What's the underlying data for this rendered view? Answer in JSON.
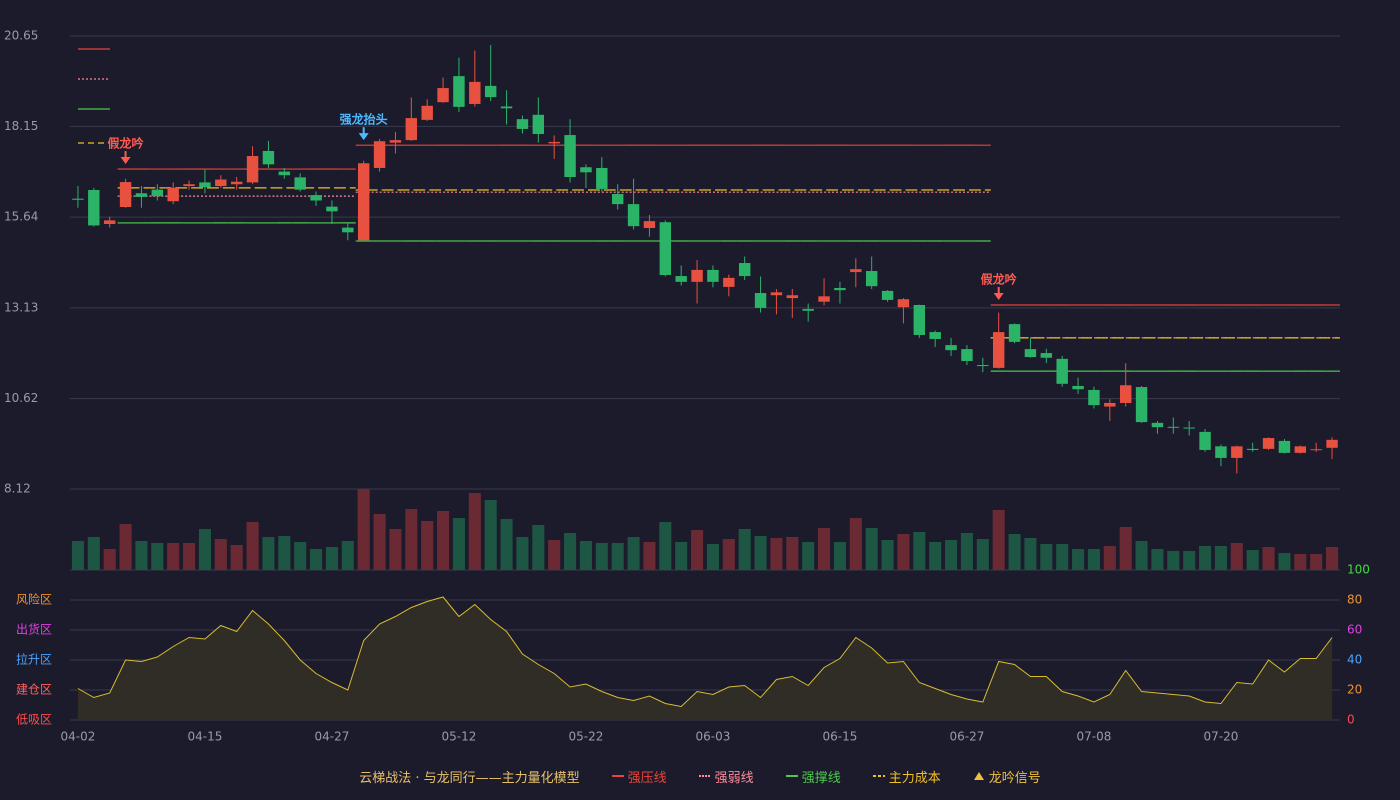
{
  "legend_title": "云梯战法 · 与龙同行——主力量化模型",
  "chart_data": [
    {
      "type": "candlestick",
      "categories": [
        "04-02",
        null,
        null,
        null,
        null,
        null,
        null,
        null,
        "04-15",
        null,
        null,
        null,
        null,
        null,
        null,
        null,
        "04-27",
        null,
        null,
        null,
        null,
        null,
        null,
        null,
        "05-12",
        null,
        null,
        null,
        null,
        null,
        null,
        null,
        "05-22",
        null,
        null,
        null,
        null,
        null,
        null,
        null,
        "06-03",
        null,
        null,
        null,
        null,
        null,
        null,
        null,
        "06-15",
        null,
        null,
        null,
        null,
        null,
        null,
        null,
        "06-27",
        null,
        null,
        null,
        null,
        null,
        null,
        null,
        "07-08",
        null,
        null,
        null,
        null,
        null,
        null,
        null,
        "07-20",
        null,
        null,
        null,
        null,
        null,
        null,
        null
      ],
      "open": [
        16.15,
        16.39,
        15.45,
        15.92,
        16.3,
        16.4,
        16.08,
        16.5,
        16.6,
        16.5,
        16.55,
        16.6,
        17.47,
        16.9,
        16.74,
        16.25,
        15.93,
        15.35,
        15.0,
        17.0,
        17.7,
        17.77,
        18.33,
        18.82,
        19.54,
        18.77,
        19.27,
        18.7,
        18.35,
        18.47,
        17.68,
        17.91,
        17.02,
        17.0,
        16.28,
        16.0,
        15.34,
        15.5,
        14.01,
        13.85,
        14.18,
        13.71,
        14.37,
        13.54,
        13.48,
        13.4,
        13.1,
        13.3,
        13.68,
        14.12,
        14.15,
        13.6,
        13.15,
        13.21,
        12.46,
        12.1,
        11.99,
        11.55,
        11.47,
        12.68,
        11.99,
        11.88,
        11.72,
        10.97,
        10.86,
        10.4,
        10.5,
        10.94,
        9.95,
        9.84,
        9.82,
        9.7,
        9.3,
        8.98,
        9.23,
        9.23,
        9.45,
        9.12,
        9.2,
        9.26
      ],
      "high": [
        16.5,
        16.45,
        15.65,
        16.7,
        16.5,
        16.55,
        16.6,
        16.65,
        16.95,
        16.8,
        16.75,
        17.6,
        17.75,
        17.0,
        16.85,
        16.35,
        16.1,
        15.5,
        17.2,
        17.8,
        18.0,
        18.95,
        18.9,
        19.5,
        20.05,
        20.25,
        20.4,
        19.15,
        18.45,
        18.95,
        17.9,
        18.35,
        17.1,
        17.3,
        16.55,
        16.7,
        15.7,
        15.55,
        14.3,
        14.45,
        14.3,
        14.05,
        14.55,
        14.0,
        13.65,
        13.65,
        13.25,
        13.95,
        13.85,
        14.5,
        14.55,
        13.62,
        13.4,
        13.22,
        12.5,
        12.3,
        12.1,
        11.75,
        13.0,
        12.7,
        12.3,
        12.0,
        11.8,
        11.2,
        10.95,
        10.6,
        11.6,
        10.97,
        10.0,
        10.1,
        10.0,
        9.78,
        9.35,
        9.32,
        9.4,
        9.55,
        9.5,
        9.32,
        9.4,
        9.55
      ],
      "low": [
        15.9,
        15.38,
        15.35,
        15.9,
        15.9,
        16.1,
        16.0,
        16.4,
        16.3,
        16.45,
        16.4,
        16.55,
        17.0,
        16.7,
        16.35,
        15.95,
        15.45,
        15.0,
        15.0,
        16.9,
        17.4,
        17.75,
        18.3,
        18.8,
        18.55,
        18.7,
        18.85,
        18.2,
        17.95,
        17.7,
        17.25,
        16.6,
        16.45,
        16.35,
        15.85,
        15.3,
        15.1,
        14.0,
        13.75,
        13.25,
        13.7,
        13.45,
        13.9,
        13.0,
        12.95,
        12.85,
        12.75,
        13.2,
        13.25,
        13.7,
        13.65,
        13.3,
        12.7,
        12.3,
        12.05,
        11.8,
        11.55,
        11.35,
        11.45,
        12.15,
        11.75,
        11.6,
        10.95,
        10.75,
        10.35,
        10.0,
        10.4,
        9.95,
        9.65,
        9.65,
        9.6,
        9.15,
        8.75,
        8.55,
        9.15,
        9.2,
        9.1,
        9.1,
        9.15,
        8.95
      ],
      "close": [
        16.12,
        15.41,
        15.55,
        16.61,
        16.2,
        16.22,
        16.45,
        16.55,
        16.47,
        16.68,
        16.62,
        17.33,
        17.1,
        16.8,
        16.4,
        16.1,
        15.8,
        15.22,
        17.13,
        17.74,
        17.77,
        18.38,
        18.72,
        19.21,
        18.69,
        19.38,
        18.96,
        18.65,
        18.08,
        17.94,
        17.72,
        16.75,
        16.88,
        16.42,
        16.0,
        15.39,
        15.53,
        14.04,
        13.85,
        14.18,
        13.85,
        13.96,
        14.01,
        13.13,
        13.56,
        13.48,
        13.05,
        13.45,
        13.62,
        14.2,
        13.73,
        13.35,
        13.37,
        12.38,
        12.27,
        11.96,
        11.66,
        11.52,
        12.46,
        12.19,
        11.77,
        11.75,
        11.03,
        10.88,
        10.44,
        10.5,
        10.99,
        9.97,
        9.83,
        9.82,
        9.8,
        9.2,
        8.98,
        9.3,
        9.2,
        9.53,
        9.12,
        9.3,
        9.22,
        9.48
      ],
      "up_color": "#e8503f",
      "down_color": "#2bb468",
      "ylim": [
        8.12,
        20.65
      ],
      "yticks": [
        8.12,
        10.62,
        13.13,
        15.64,
        18.15,
        20.65
      ],
      "grid": true,
      "series": [
        {
          "name": "强压线",
          "color": "#e8443a",
          "style": "solid",
          "values": [
            null,
            null,
            null,
            16.97,
            16.97,
            16.97,
            16.97,
            16.97,
            16.97,
            16.97,
            16.97,
            16.97,
            16.97,
            16.97,
            16.97,
            16.97,
            16.97,
            16.97,
            17.63,
            17.63,
            17.63,
            17.63,
            17.63,
            17.63,
            17.63,
            17.63,
            17.63,
            17.63,
            17.63,
            17.63,
            17.63,
            17.63,
            17.63,
            17.63,
            17.63,
            17.63,
            17.63,
            17.63,
            17.63,
            17.63,
            17.63,
            17.63,
            17.63,
            17.63,
            17.63,
            17.63,
            17.63,
            17.63,
            17.63,
            17.63,
            17.63,
            17.63,
            17.63,
            17.63,
            17.63,
            17.63,
            17.63,
            17.63,
            13.21,
            13.21,
            13.21,
            13.21,
            13.21,
            13.21,
            13.21,
            13.21,
            13.21,
            13.21,
            13.21,
            13.21,
            13.21,
            13.21,
            13.21,
            13.21,
            13.21,
            13.21,
            13.21,
            13.21,
            13.21,
            13.21
          ]
        },
        {
          "name": "强弱线",
          "color": "#ff8a9a",
          "style": "dotted",
          "values": [
            null,
            null,
            null,
            16.22,
            16.22,
            16.22,
            16.22,
            16.22,
            16.22,
            16.22,
            16.22,
            16.22,
            16.22,
            16.22,
            16.22,
            16.22,
            16.22,
            16.22,
            16.33,
            16.33,
            16.33,
            16.33,
            16.33,
            16.33,
            16.33,
            16.33,
            16.33,
            16.33,
            16.33,
            16.33,
            16.33,
            16.33,
            16.33,
            16.33,
            16.33,
            16.33,
            16.33,
            16.33,
            16.33,
            16.33,
            16.33,
            16.33,
            16.33,
            16.33,
            16.33,
            16.33,
            16.33,
            16.33,
            16.33,
            16.33,
            16.33,
            16.33,
            16.33,
            16.33,
            16.33,
            16.33,
            16.33,
            16.33,
            12.3,
            12.3,
            12.3,
            12.3,
            12.3,
            12.3,
            12.3,
            12.3,
            12.3,
            12.3,
            12.3,
            12.3,
            12.3,
            12.3,
            12.3,
            12.3,
            12.3,
            12.3,
            12.3,
            12.3,
            12.3,
            12.3
          ]
        },
        {
          "name": "强撑线",
          "color": "#4cc94c",
          "style": "solid",
          "values": [
            null,
            null,
            null,
            15.48,
            15.48,
            15.48,
            15.48,
            15.48,
            15.48,
            15.48,
            15.48,
            15.48,
            15.48,
            15.48,
            15.48,
            15.48,
            15.48,
            15.48,
            14.98,
            14.98,
            14.98,
            14.98,
            14.98,
            14.98,
            14.98,
            14.98,
            14.98,
            14.98,
            14.98,
            14.98,
            14.98,
            14.98,
            14.98,
            14.98,
            14.98,
            14.98,
            14.98,
            14.98,
            14.98,
            14.98,
            14.98,
            14.98,
            14.98,
            14.98,
            14.98,
            14.98,
            14.98,
            14.98,
            14.98,
            14.98,
            14.98,
            14.98,
            14.98,
            14.98,
            14.98,
            14.98,
            14.98,
            14.98,
            11.38,
            11.38,
            11.38,
            11.38,
            11.38,
            11.38,
            11.38,
            11.38,
            11.38,
            11.38,
            11.38,
            11.38,
            11.38,
            11.38,
            11.38,
            11.38,
            11.38,
            11.38,
            11.38,
            11.38,
            11.38,
            11.38
          ]
        },
        {
          "name": "主力成本",
          "color": "#f0c020",
          "style": "dashed",
          "values": [
            null,
            null,
            null,
            16.45,
            16.45,
            16.45,
            16.45,
            16.45,
            16.45,
            16.45,
            16.45,
            16.45,
            16.45,
            16.45,
            16.45,
            16.45,
            16.45,
            16.45,
            16.39,
            16.39,
            16.39,
            16.39,
            16.39,
            16.39,
            16.39,
            16.39,
            16.39,
            16.39,
            16.39,
            16.39,
            16.39,
            16.39,
            16.39,
            16.39,
            16.39,
            16.39,
            16.39,
            16.39,
            16.39,
            16.39,
            16.39,
            16.39,
            16.39,
            16.39,
            16.39,
            16.39,
            16.39,
            16.39,
            16.39,
            16.39,
            16.39,
            16.39,
            16.39,
            16.39,
            16.39,
            16.39,
            16.39,
            16.39,
            12.3,
            12.3,
            12.3,
            12.3,
            12.3,
            12.3,
            12.3,
            12.3,
            12.3,
            12.3,
            12.3,
            12.3,
            12.3,
            12.3,
            12.3,
            12.3,
            12.3,
            12.3,
            12.3,
            12.3,
            12.3,
            12.3
          ]
        }
      ],
      "signals": [
        {
          "index": 3,
          "label": "假龙吟",
          "color": "#ff5a50"
        },
        {
          "index": 18,
          "label": "强龙抬头",
          "color": "#4db8ff"
        },
        {
          "index": 58,
          "label": "假龙吟",
          "color": "#ff5a50"
        }
      ],
      "signal_legend": "龙吟信号",
      "signal_legend_color": "#f0c040"
    },
    {
      "type": "bar",
      "values": [
        29,
        33,
        21,
        46,
        29,
        27,
        27,
        27,
        41,
        31,
        25,
        48,
        33,
        34,
        28,
        21,
        23,
        29,
        81,
        56,
        41,
        61,
        49,
        59,
        52,
        77,
        70,
        51,
        33,
        45,
        30,
        37,
        29,
        27,
        27,
        33,
        28,
        48,
        28,
        40,
        26,
        31,
        41,
        34,
        32,
        33,
        28,
        42,
        28,
        52,
        42,
        30,
        36,
        38,
        28,
        30,
        37,
        31,
        60,
        36,
        32,
        26,
        26,
        21,
        21,
        24,
        43,
        29,
        21,
        19,
        19,
        24,
        24,
        27,
        20,
        23,
        17,
        16,
        16,
        23
      ],
      "ylim": [
        0,
        81
      ],
      "up_color": "#6b2a33",
      "down_color": "#1d5642"
    },
    {
      "type": "line",
      "values": [
        21,
        15,
        18,
        40,
        39,
        42,
        49,
        55,
        54,
        63,
        59,
        73,
        64,
        53,
        40,
        31,
        25,
        20,
        53,
        64,
        69,
        75,
        79,
        82,
        69,
        77,
        67,
        59,
        44,
        37,
        31,
        22,
        24,
        19,
        15,
        13,
        16,
        11,
        9,
        19,
        17,
        22,
        23,
        15,
        27,
        29,
        23,
        35,
        41,
        55,
        48,
        38,
        39,
        25,
        21,
        17,
        14,
        12,
        39,
        37,
        29,
        29,
        19,
        16,
        12,
        17,
        33,
        19,
        18,
        17,
        16,
        12,
        11,
        25,
        24,
        40,
        32,
        41,
        41,
        55
      ],
      "color": "#d8bc30",
      "fill": "#302c26",
      "ylim": [
        0,
        100
      ],
      "yticks": [
        0,
        20,
        40,
        60,
        80,
        100
      ],
      "ytick_colors": [
        "#ff4d4d",
        "#f09030",
        "#4aa3ff",
        "#e040e0",
        "#f09030",
        "#3fdc3f"
      ],
      "zones": [
        {
          "value": 0,
          "label": "低吸区",
          "color": "#ff4d4d"
        },
        {
          "value": 20,
          "label": "建仓区",
          "color": "#ff6060"
        },
        {
          "value": 40,
          "label": "拉升区",
          "color": "#4aa3ff"
        },
        {
          "value": 60,
          "label": "出货区",
          "color": "#e040e0"
        },
        {
          "value": 80,
          "label": "风险区",
          "color": "#f09030"
        }
      ],
      "grid": true
    }
  ]
}
